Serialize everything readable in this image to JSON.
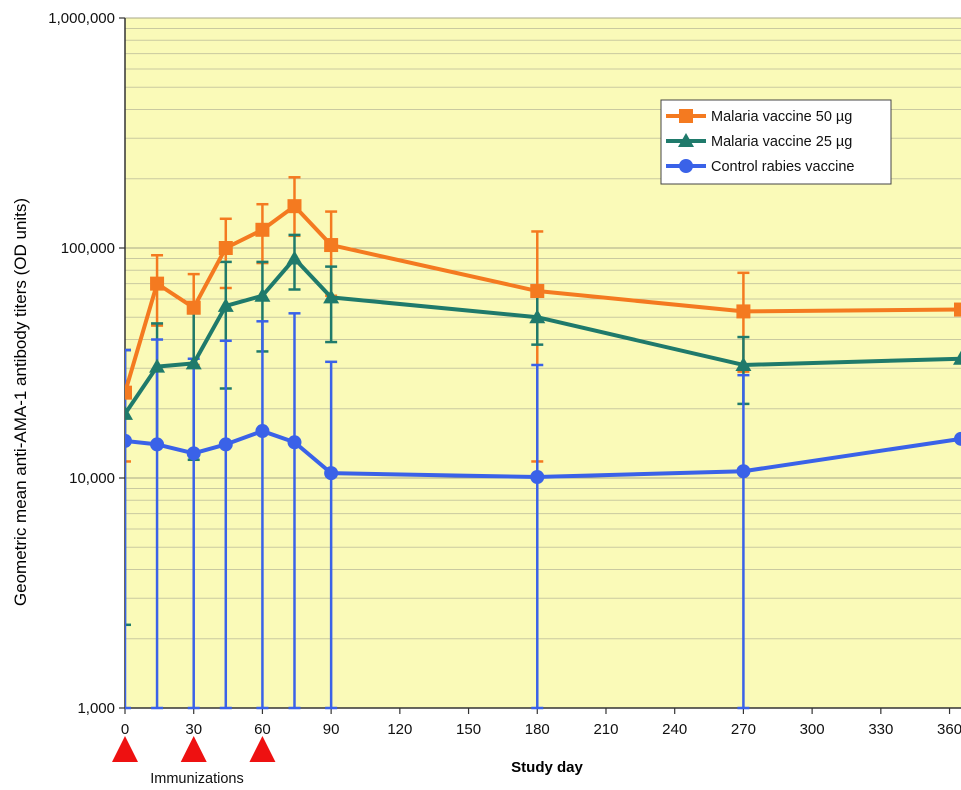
{
  "chart_data": {
    "type": "line",
    "xlabel": "Study day",
    "ylabel": "Geometric mean anti-AMA-1 antibody titers (OD units)",
    "y_scale": "log",
    "ylim": [
      1000,
      1000000
    ],
    "xlim": [
      0,
      365
    ],
    "x_ticks": [
      0,
      30,
      60,
      90,
      120,
      150,
      180,
      210,
      240,
      270,
      300,
      330,
      360
    ],
    "y_major_ticks": [
      {
        "value": 1000,
        "label": "1,000"
      },
      {
        "value": 10000,
        "label": "10,000"
      },
      {
        "value": 100000,
        "label": "100,000"
      },
      {
        "value": 1000000,
        "label": "1,000,000"
      }
    ],
    "grid": true,
    "legend_position": "top-right",
    "plot_background": "#fafab8",
    "annotation": {
      "text": "Immunizations",
      "days": [
        0,
        30,
        60
      ],
      "color": "#ee1111"
    },
    "series": [
      {
        "name": "Malaria vaccine 50 µg",
        "color": "#f47a20",
        "marker": "square",
        "points": [
          {
            "x": 0,
            "y": 23500,
            "lo": 11800,
            "hi": 36000
          },
          {
            "x": 14,
            "y": 70000,
            "lo": 46000,
            "hi": 93000
          },
          {
            "x": 30,
            "y": 55000,
            "lo": 31000,
            "hi": 77000
          },
          {
            "x": 44,
            "y": 100000,
            "lo": 67000,
            "hi": 134000
          },
          {
            "x": 60,
            "y": 120000,
            "lo": 86000,
            "hi": 155000
          },
          {
            "x": 74,
            "y": 152000,
            "lo": 113000,
            "hi": 203000
          },
          {
            "x": 90,
            "y": 103000,
            "lo": 62000,
            "hi": 144000
          },
          {
            "x": 180,
            "y": 65000,
            "lo": 11800,
            "hi": 118000
          },
          {
            "x": 270,
            "y": 53000,
            "lo": 29000,
            "hi": 78000
          },
          {
            "x": 365,
            "y": 54000
          }
        ]
      },
      {
        "name": "Malaria vaccine 25 µg",
        "color": "#1f7a6b",
        "marker": "triangle",
        "points": [
          {
            "x": 0,
            "y": 19000,
            "lo": 2300,
            "hi": 36000
          },
          {
            "x": 14,
            "y": 30500,
            "lo": 14000,
            "hi": 47000
          },
          {
            "x": 30,
            "y": 31500,
            "lo": 12000,
            "hi": 52000
          },
          {
            "x": 44,
            "y": 56000,
            "lo": 24500,
            "hi": 87000
          },
          {
            "x": 60,
            "y": 62000,
            "lo": 35500,
            "hi": 87000
          },
          {
            "x": 74,
            "y": 90000,
            "lo": 66000,
            "hi": 114000
          },
          {
            "x": 90,
            "y": 61000,
            "lo": 39000,
            "hi": 83000
          },
          {
            "x": 180,
            "y": 50000,
            "lo": 38000,
            "hi": 62000
          },
          {
            "x": 270,
            "y": 31000,
            "lo": 21000,
            "hi": 41000
          },
          {
            "x": 365,
            "y": 33000
          }
        ]
      },
      {
        "name": "Control rabies vaccine",
        "color": "#3a62e8",
        "marker": "circle",
        "points": [
          {
            "x": 0,
            "y": 14500,
            "lo": 1000,
            "hi": 36000
          },
          {
            "x": 14,
            "y": 14000,
            "lo": 1000,
            "hi": 40000
          },
          {
            "x": 30,
            "y": 12800,
            "lo": 1000,
            "hi": 33000
          },
          {
            "x": 44,
            "y": 14000,
            "lo": 1000,
            "hi": 39500
          },
          {
            "x": 60,
            "y": 16000,
            "lo": 1000,
            "hi": 48000
          },
          {
            "x": 74,
            "y": 14300,
            "lo": 1000,
            "hi": 52000
          },
          {
            "x": 90,
            "y": 10500,
            "lo": 1000,
            "hi": 32000
          },
          {
            "x": 180,
            "y": 10100,
            "lo": 1000,
            "hi": 31000
          },
          {
            "x": 270,
            "y": 10700,
            "lo": 1000,
            "hi": 28000
          },
          {
            "x": 365,
            "y": 14800
          }
        ]
      }
    ]
  }
}
